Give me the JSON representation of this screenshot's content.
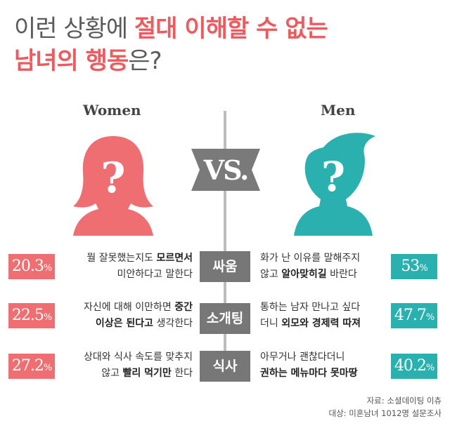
{
  "title": {
    "line1_normal": "이런 상황에 ",
    "line1_highlight": "절대 이해할 수 없는",
    "line2_highlight": "남녀의 행동",
    "line2_normal": "은?"
  },
  "women_label": "Women",
  "men_label": "Men",
  "vs_label": "VS.",
  "colors": {
    "women": "#ee6e72",
    "men": "#2bb0b0",
    "category": "#777777",
    "title_accent": "#ee5a5e"
  },
  "rows": [
    {
      "category": "싸움",
      "women_pct": "20.3",
      "women_text_a": "뭘 잘못했는지도 ",
      "women_text_b": "모르면서",
      "women_text_c": "미안하다고 말한다",
      "men_pct": "53",
      "men_text_a": "화가 난 이유를 말해주지",
      "men_text_b": "않고 ",
      "men_text_c": "알아맞히길",
      "men_text_d": " 바란다"
    },
    {
      "category": "소개팅",
      "women_pct": "22.5",
      "women_text_a": "자신에 대해 이만하면 ",
      "women_text_b": "중간",
      "women_text_c": "이상은 된다고",
      "women_text_d": " 생각한다",
      "men_pct": "47.7",
      "men_text_a": "통하는 남자 만나고 싶다",
      "men_text_b": "더니 ",
      "men_text_c": "외모와 경제력 따져"
    },
    {
      "category": "식사",
      "women_pct": "27.2",
      "women_text_a": "상대와 식사 속도를 맞추지",
      "women_text_b": "않고 ",
      "women_text_c": "빨리 먹기만",
      "women_text_d": " 한다",
      "men_pct": "40.2",
      "men_text_a": "아무거나 괜찮다더니",
      "men_text_b": "권하는 메뉴마다 못마땅"
    }
  ],
  "pct_unit": "%",
  "source_line1": "자료: 소셜데이팅 이츄",
  "source_line2": "대상: 미혼남녀 1012명 설문조사"
}
